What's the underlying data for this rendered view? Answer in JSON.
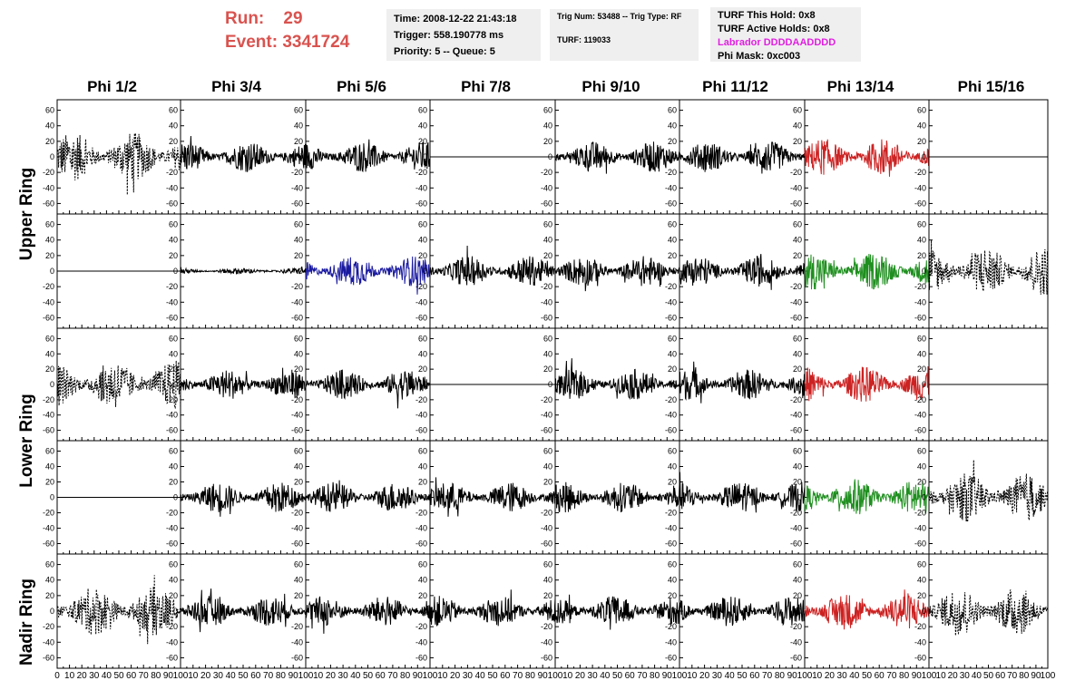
{
  "run": {
    "label": "Run:    29",
    "event": "Event: 3341724"
  },
  "time_box": {
    "time": "Time: 2008-12-22 21:43:18",
    "trigger": "Trigger: 558.190778 ms",
    "priority": "Priority: 5 -- Queue: 5"
  },
  "trig_box": {
    "trig_num": "Trig Num: 53488 -- Trig Type: RF",
    "turf": "TURF: 119033"
  },
  "turf_box": {
    "hold": "TURF This Hold: 0x8",
    "active": "TURF Active Holds: 0x8",
    "labrador": "Labrador DDDDAADDDD",
    "phi_mask": "Phi Mask: 0xc003"
  },
  "phi_headers": [
    "Phi 1/2",
    "Phi 3/4",
    "Phi 5/6",
    "Phi 7/8",
    "Phi 9/10",
    "Phi 11/12",
    "Phi 13/14",
    "Phi 15/16"
  ],
  "ring_labels": {
    "upper": "Upper Ring",
    "lower": "Lower Ring",
    "nadir": "Nadir Ring"
  },
  "y_ticks": [
    "60",
    "40",
    "20",
    "0",
    "-20",
    "-40",
    "-60"
  ],
  "x_ticks_first": [
    "0",
    "10",
    "20",
    "30",
    "40",
    "50",
    "60",
    "70",
    "80",
    "90",
    "100"
  ],
  "x_ticks_other": [
    "10",
    "20",
    "30",
    "40",
    "50",
    "60",
    "70",
    "80",
    "90",
    "100"
  ],
  "colors": {
    "run_text": "#d9534f",
    "labrador": "#e020e0",
    "red": "#cc2222",
    "blue": "#1a1aa0",
    "green": "#1f8f1f",
    "black": "#000000"
  },
  "chart_data": {
    "type": "line",
    "rows": 5,
    "cols": 8,
    "x_range": [
      0,
      100
    ],
    "y_range": [
      -70,
      70
    ],
    "panels": [
      [
        "dashed",
        "solid",
        "solid",
        "flat",
        "solid",
        "solid",
        "red",
        "flat"
      ],
      [
        "flat",
        "small",
        "blue",
        "solid",
        "solid",
        "solid",
        "green",
        "dashed"
      ],
      [
        "dashed",
        "solid",
        "solid",
        "flat",
        "solid",
        "solid",
        "red",
        "flat"
      ],
      [
        "flat",
        "solid",
        "solid",
        "solid",
        "solid",
        "solid",
        "green",
        "dashed"
      ],
      [
        "dashed",
        "solid",
        "solid",
        "solid",
        "solid",
        "solid",
        "red",
        "dashed"
      ]
    ]
  }
}
